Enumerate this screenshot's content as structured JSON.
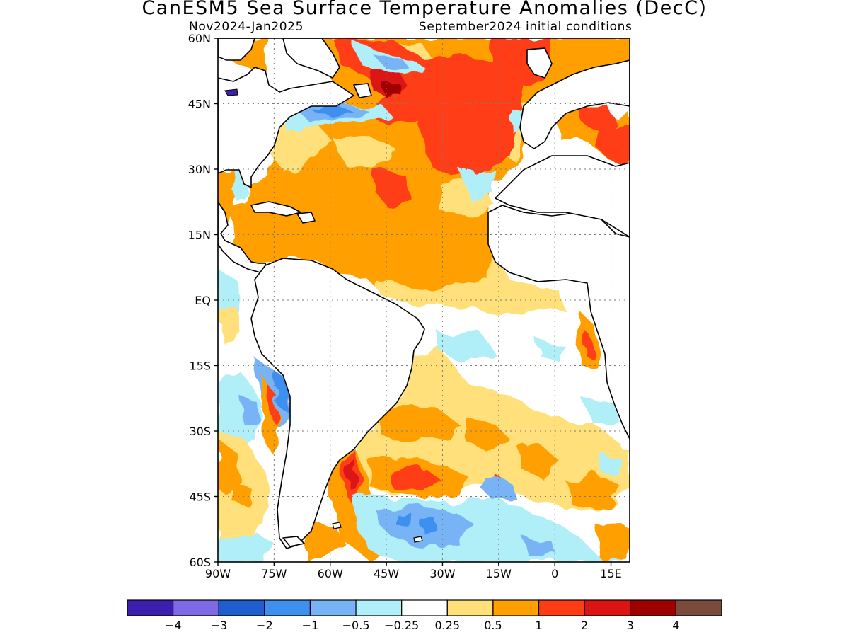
{
  "title": "CanESM5 Sea Surface Temperature Anomalies (DecC)",
  "subtitle_left": "Nov2024-Jan2025",
  "subtitle_right": "September2024 initial conditions",
  "latitude_labels": [
    "60N",
    "45N",
    "30N",
    "15N",
    "EQ",
    "15S",
    "30S",
    "45S",
    "60S"
  ],
  "longitude_labels": [
    "90W",
    "75W",
    "60W",
    "45W",
    "30W",
    "15W",
    "0",
    "15E"
  ],
  "colorbar": {
    "colors": [
      "#3d1fb0",
      "#7f6ae6",
      "#1e5ed0",
      "#3d8ff0",
      "#78b4f5",
      "#b0eef8",
      "#ffffff",
      "#ffe07a",
      "#ffa000",
      "#ff3c14",
      "#dc1414",
      "#a00000",
      "#7a4a3c"
    ],
    "labels": [
      "-4",
      "-3",
      "-2",
      "-1",
      "-0.5",
      "-0.25",
      "0.25",
      "0.5",
      "1",
      "2",
      "3",
      "4"
    ]
  },
  "colors": {
    "warm_05_1": "#ffa000",
    "warm_025_05": "#ffe07a",
    "warm_1_2": "#ff3c14",
    "warm_2_3": "#dc1414",
    "cool_025_05": "#b0eef8",
    "cool_05_1": "#78b4f5",
    "cool_1_2": "#3d8ff0"
  }
}
